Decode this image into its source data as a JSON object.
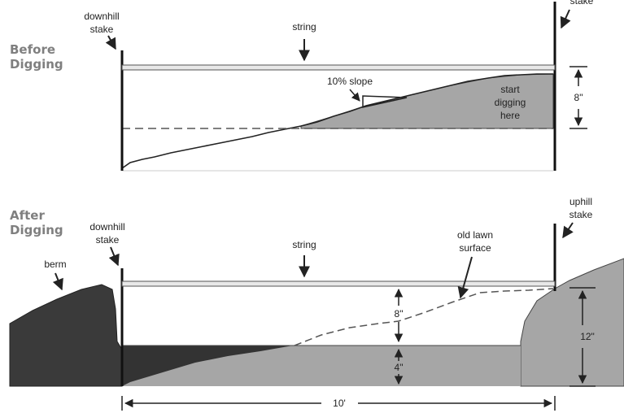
{
  "before": {
    "heading_line1": "Before",
    "heading_line2": "Digging",
    "downhill_stake_line1": "downhill",
    "downhill_stake_line2": "stake",
    "uphill_stake_fragment": "stake",
    "string_label": "string",
    "slope_label": "10% slope",
    "start_digging_line1": "start",
    "start_digging_line2": "digging",
    "start_digging_line3": "here",
    "depth_label": "8\""
  },
  "after": {
    "heading_line1": "After",
    "heading_line2": "Digging",
    "downhill_stake_line1": "downhill",
    "downhill_stake_line2": "stake",
    "uphill_stake_line1": "uphill",
    "uphill_stake_line2": "stake",
    "berm_label": "berm",
    "string_label": "string",
    "old_lawn_line1": "old lawn",
    "old_lawn_line2": "surface",
    "depth_8_label": "8\"",
    "depth_4_label": "4\"",
    "depth_12_label": "12\""
  },
  "width_label": "10'",
  "colors": {
    "soil": "#a6a6a6",
    "berm": "#3a3a3a",
    "dark_fill": "#333333",
    "string": "#555555",
    "heading": "#7f7f7f"
  }
}
